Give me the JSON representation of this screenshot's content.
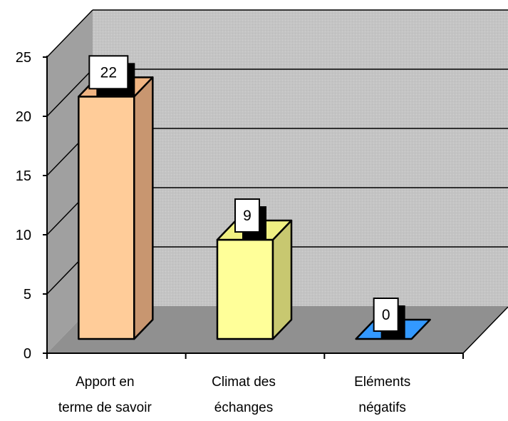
{
  "chart_data": {
    "type": "bar",
    "style": "3d",
    "categories": [
      [
        "Apport en",
        "terme de savoir"
      ],
      [
        "Climat des",
        "échanges"
      ],
      [
        "Eléments",
        "négatifs"
      ]
    ],
    "values": [
      22,
      9,
      0
    ],
    "data_labels": [
      "22",
      "9",
      "0"
    ],
    "ylim": [
      0,
      25
    ],
    "yticks": [
      0,
      5,
      10,
      15,
      20,
      25
    ],
    "grid": true,
    "legend": "none",
    "colors": {
      "bars": [
        "#FFCC99",
        "#FFFF99",
        "#3399FF"
      ],
      "bar_sides": [
        "#C89670",
        "#C8C870",
        "#2A6CB0"
      ],
      "bar_tops": [
        "#F0B482",
        "#F0F082",
        "#5AA8F0"
      ],
      "back_wall": "#C8C8C8",
      "side_wall": "#A0A0A0",
      "floor": "#909090",
      "gridline": "#000000",
      "axis": "#000000"
    }
  }
}
